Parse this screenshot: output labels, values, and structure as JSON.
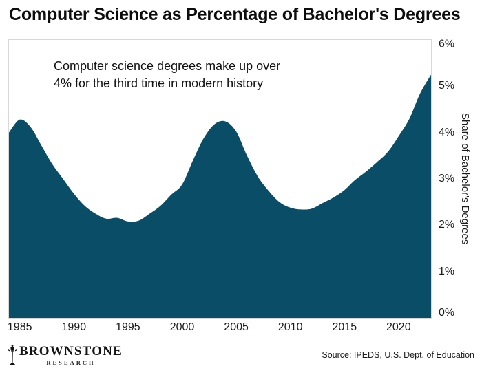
{
  "title": "Computer Science as Percentage of Bachelor's Degrees",
  "annotation": {
    "line1": "Computer science degrees make up over",
    "line2": "4% for the third time in modern history"
  },
  "y_axis": {
    "title": "Share of Bachelor's Degrees",
    "ticks": [
      "6%",
      "5%",
      "4%",
      "3%",
      "2%",
      "1%",
      "0%"
    ]
  },
  "x_axis": {
    "ticks": [
      "1985",
      "1990",
      "1995",
      "2000",
      "2005",
      "2010",
      "2015",
      "2020"
    ]
  },
  "footer": {
    "logo": {
      "icon": "lamppost-icon",
      "name": "BROWNSTONE",
      "subname": "RESEARCH"
    },
    "source": "Source: IPEDS, U.S. Dept. of Education"
  },
  "colors": {
    "area_fill": "#0A4D66",
    "plot_border": "#D8D8D8",
    "text": "#1B1B1B"
  },
  "chart_data": {
    "type": "area",
    "title": "Computer Science as Percentage of Bachelor's Degrees",
    "xlabel": "",
    "ylabel": "Share of Bachelor's Degrees",
    "xlim": [
      1984,
      2023
    ],
    "ylim": [
      0,
      6
    ],
    "grid": false,
    "legend": false,
    "annotation": "Computer science degrees make up over 4% for the third time in modern history",
    "x": [
      1984,
      1985,
      1986,
      1987,
      1988,
      1989,
      1990,
      1991,
      1992,
      1993,
      1994,
      1995,
      1996,
      1997,
      1998,
      1999,
      2000,
      2001,
      2002,
      2003,
      2004,
      2005,
      2006,
      2007,
      2008,
      2009,
      2010,
      2011,
      2012,
      2013,
      2014,
      2015,
      2016,
      2017,
      2018,
      2019,
      2020,
      2021,
      2022,
      2023
    ],
    "values": [
      4.0,
      4.28,
      4.12,
      3.72,
      3.32,
      3.0,
      2.68,
      2.42,
      2.25,
      2.14,
      2.16,
      2.08,
      2.1,
      2.25,
      2.42,
      2.66,
      2.88,
      3.4,
      3.88,
      4.18,
      4.24,
      4.02,
      3.5,
      3.05,
      2.74,
      2.5,
      2.38,
      2.34,
      2.36,
      2.48,
      2.6,
      2.76,
      2.98,
      3.16,
      3.36,
      3.58,
      3.92,
      4.3,
      4.85,
      5.25
    ]
  }
}
